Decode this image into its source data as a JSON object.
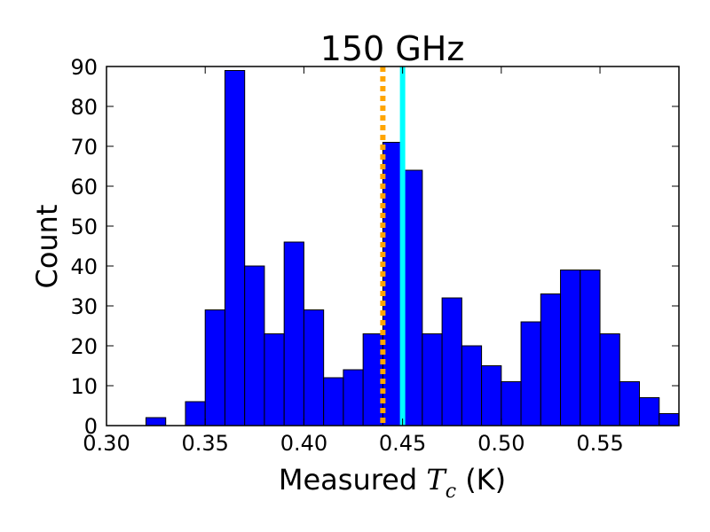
{
  "chart_data": {
    "type": "bar",
    "title": "150 GHz",
    "xlabel_prefix": "Measured ",
    "xlabel_symbol": "T",
    "xlabel_subscript": "c",
    "xlabel_suffix": " (K)",
    "ylabel": "Count",
    "xlim": [
      0.3,
      0.59
    ],
    "ylim": [
      0,
      90
    ],
    "x_ticks": [
      "0.30",
      "0.35",
      "0.40",
      "0.45",
      "0.50",
      "0.55"
    ],
    "y_ticks": [
      "0",
      "10",
      "20",
      "30",
      "40",
      "50",
      "60",
      "70",
      "80",
      "90"
    ],
    "bin_width": 0.01,
    "bin_starts": [
      0.32,
      0.34,
      0.35,
      0.36,
      0.37,
      0.38,
      0.39,
      0.4,
      0.41,
      0.42,
      0.43,
      0.44,
      0.45,
      0.46,
      0.47,
      0.48,
      0.49,
      0.5,
      0.51,
      0.52,
      0.53,
      0.54,
      0.55,
      0.56,
      0.57,
      0.58
    ],
    "values": [
      2,
      6,
      29,
      89,
      40,
      23,
      46,
      29,
      12,
      14,
      23,
      71,
      64,
      23,
      32,
      20,
      15,
      11,
      26,
      33,
      39,
      39,
      23,
      11,
      7,
      3
    ],
    "bar_color": "#0000ff",
    "vlines": [
      {
        "name": "orange-dotted-line",
        "x": 0.44,
        "color": "#ffa500",
        "style": "dotted"
      },
      {
        "name": "cyan-solid-line",
        "x": 0.45,
        "color": "#00ffff",
        "style": "solid"
      }
    ]
  }
}
